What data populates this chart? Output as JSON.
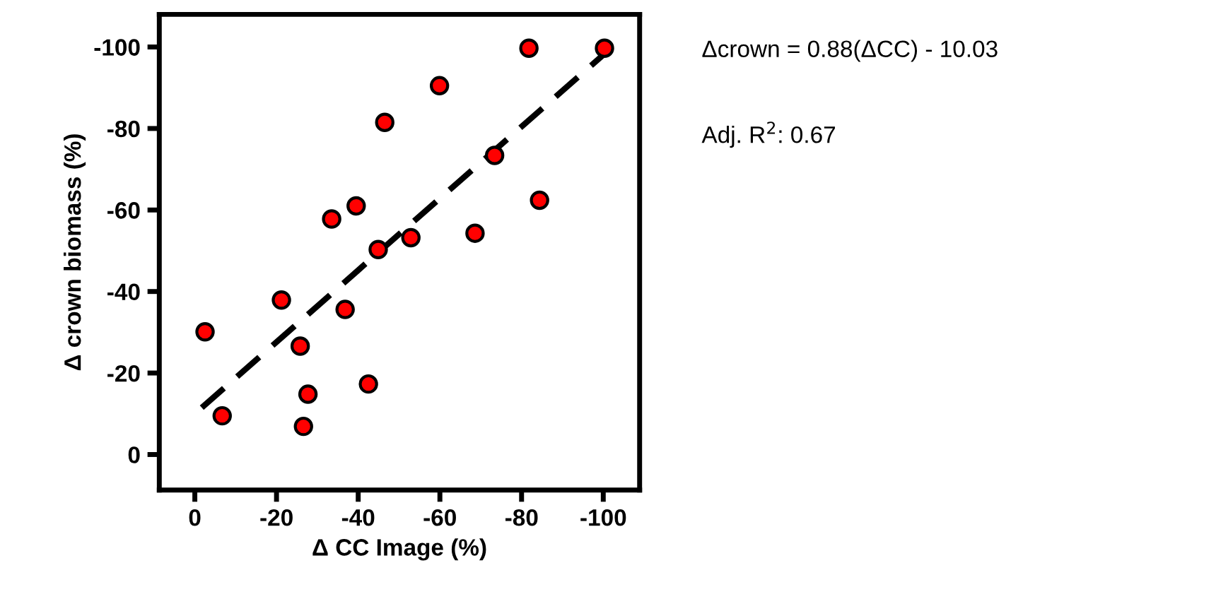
{
  "chart_data": {
    "type": "scatter",
    "xlabel": "Δ CC Image (%)",
    "ylabel": "Δ crown biomass (%)",
    "xlim": [
      8.7,
      -108.9
    ],
    "ylim": [
      8.7,
      -108
    ],
    "xticks": [
      0,
      -20,
      -40,
      -60,
      -80,
      -100
    ],
    "yticks": [
      0,
      -20,
      -40,
      -60,
      -80,
      -100
    ],
    "grid": false,
    "legend": false,
    "annotations": [
      "Δcrown = 0.88(ΔCC) - 10.03",
      "Adj. R$^{2}$: 0.67"
    ],
    "series": [
      {
        "marker": "circle",
        "color": "#ff0000",
        "x": [
          -2.5,
          -6.7,
          -21.2,
          -25.8,
          -27.7,
          -26.6,
          -33.5,
          -39.5,
          -36.8,
          -42.5,
          -44.9,
          -46.5,
          -52.9,
          -59.9,
          -68.6,
          -73.4,
          -81.8,
          -84.4,
          -100.3
        ],
        "values": [
          -30.1,
          -9.5,
          -37.9,
          -26.6,
          -14.8,
          -6.9,
          -57.8,
          -61.0,
          -35.6,
          -17.3,
          -50.3,
          -81.5,
          -53.2,
          -90.5,
          -54.3,
          -73.4,
          -99.7,
          -62.4,
          -99.7
        ]
      },
      {
        "type": "line",
        "marker": "none",
        "color": "#000000",
        "line_style": "dashed",
        "x": [
          -1.7,
          -100.6
        ],
        "values": [
          -11.5,
          -98.6
        ]
      }
    ]
  }
}
